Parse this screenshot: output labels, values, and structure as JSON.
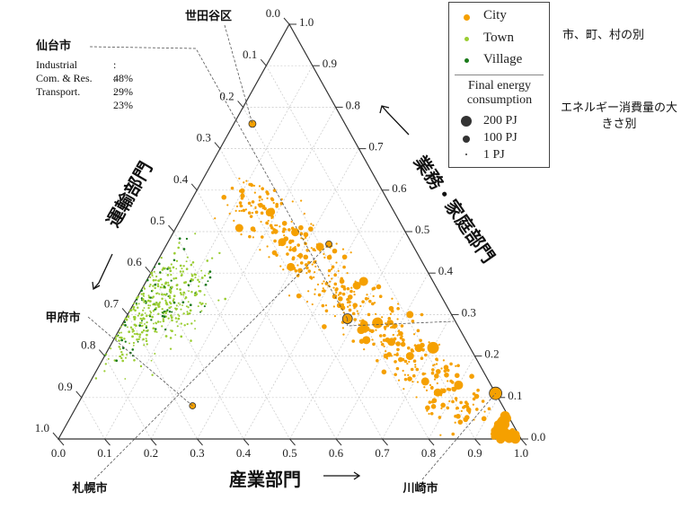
{
  "chart_data": {
    "type": "scatter",
    "subtype": "ternary",
    "axes": {
      "bottom": {
        "label": "産業部門",
        "ticks": [
          "0.0",
          "0.1",
          "0.2",
          "0.3",
          "0.4",
          "0.5",
          "0.6",
          "0.7",
          "0.8",
          "0.9",
          "1.0"
        ]
      },
      "right": {
        "label": "業務・家庭部門",
        "ticks": [
          "0.0",
          "0.1",
          "0.2",
          "0.3",
          "0.4",
          "0.5",
          "0.6",
          "0.7",
          "0.8",
          "0.9",
          "1.0"
        ]
      },
      "left": {
        "label": "運輸部門",
        "ticks": [
          "0.0",
          "0.1",
          "0.2",
          "0.3",
          "0.4",
          "0.5",
          "0.6",
          "0.7",
          "0.8",
          "0.9",
          "1.0"
        ]
      }
    },
    "grid": true,
    "legend": {
      "placement": "top-right",
      "categories": [
        {
          "label": "City",
          "color": "#f5a000"
        },
        {
          "label": "Town",
          "color": "#9acd32"
        },
        {
          "label": "Village",
          "color": "#1a7a1a"
        }
      ],
      "size_title": "Final energy consumption",
      "sizes": [
        "200 PJ",
        "100 PJ",
        "1 PJ"
      ]
    },
    "annotations_right": [
      "市、町、村の別",
      "エネルギー消費量の大きさ別"
    ],
    "highlighted": [
      {
        "name": "世田谷区",
        "industrial": 0.04,
        "commercial_residential": 0.76,
        "transport": 0.2
      },
      {
        "name": "仙台市",
        "industrial": 0.48,
        "commercial_residential": 0.29,
        "transport": 0.23
      },
      {
        "name": "甲府市",
        "industrial": 0.25,
        "commercial_residential": 0.08,
        "transport": 0.67
      },
      {
        "name": "札幌市",
        "industrial": 0.35,
        "commercial_residential": 0.47,
        "transport": 0.18
      },
      {
        "name": "川崎市",
        "industrial": 0.89,
        "commercial_residential": 0.11,
        "transport": 0.0
      }
    ],
    "sendai_info": {
      "title": "仙台市",
      "rows": [
        {
          "label": "Industrial",
          "value": ": 48%"
        },
        {
          "label": "Com. & Res.",
          "value": ": 29%"
        },
        {
          "label": "Transport.",
          "value": ": 23%"
        }
      ]
    },
    "series": [
      {
        "name": "City",
        "color": "#f5a000"
      },
      {
        "name": "Town",
        "color": "#9acd32"
      },
      {
        "name": "Village",
        "color": "#1a7a1a"
      }
    ]
  }
}
